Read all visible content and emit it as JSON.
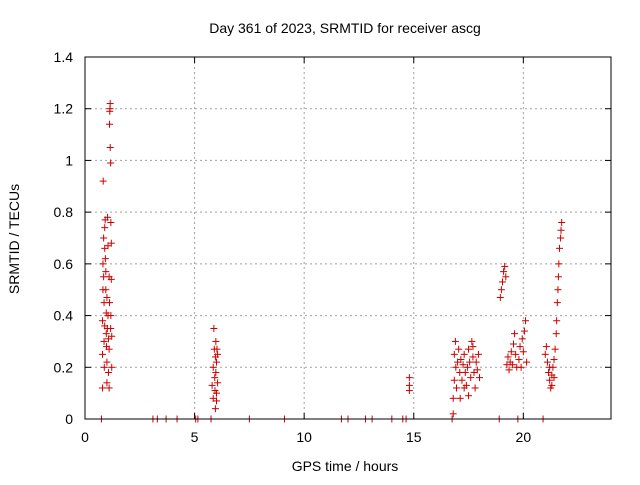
{
  "chart_data": {
    "type": "scatter",
    "title": "Day 361 of 2023, SRMTID for receiver ascg",
    "xlabel": "GPS time / hours",
    "ylabel": "SRMTID / TECUs",
    "xlim": [
      0,
      24
    ],
    "ylim": [
      0,
      1.4
    ],
    "xticks": [
      0,
      5,
      10,
      15,
      20
    ],
    "yticks": [
      0,
      0.2,
      0.4,
      0.6,
      0.8,
      1,
      1.2,
      1.4
    ],
    "xtick_labels": [
      "0",
      "5",
      "10",
      "15",
      "20"
    ],
    "ytick_labels": [
      "0",
      "0.2",
      "0.4",
      "0.6",
      "0.8",
      "1",
      "1.2",
      "1.4"
    ],
    "grid": true,
    "marker": "+",
    "colors": {
      "points": "#cc0000",
      "grid": "#a0a0a0",
      "axes": "#000000"
    },
    "series": [
      {
        "name": "SRMTID",
        "points": [
          [
            0.75,
            0.0
          ],
          [
            0.8,
            0.12
          ],
          [
            0.8,
            0.25
          ],
          [
            0.8,
            0.38
          ],
          [
            0.82,
            0.5
          ],
          [
            0.82,
            0.6
          ],
          [
            0.83,
            0.92
          ],
          [
            0.85,
            0.7
          ],
          [
            0.85,
            0.55
          ],
          [
            0.87,
            0.45
          ],
          [
            0.87,
            0.3
          ],
          [
            0.88,
            0.2
          ],
          [
            0.9,
            0.36
          ],
          [
            0.9,
            0.66
          ],
          [
            0.9,
            0.74
          ],
          [
            0.92,
            0.77
          ],
          [
            0.93,
            0.62
          ],
          [
            0.95,
            0.57
          ],
          [
            0.97,
            0.41
          ],
          [
            0.97,
            0.33
          ],
          [
            0.98,
            0.28
          ],
          [
            1.0,
            0.14
          ],
          [
            1.0,
            0.22
          ],
          [
            1.0,
            0.47
          ],
          [
            1.02,
            0.35
          ],
          [
            1.03,
            0.78
          ],
          [
            1.05,
            0.67
          ],
          [
            1.05,
            0.4
          ],
          [
            1.07,
            0.31
          ],
          [
            1.07,
            0.18
          ],
          [
            1.1,
            0.12
          ],
          [
            1.1,
            0.27
          ],
          [
            1.12,
            0.45
          ],
          [
            1.12,
            1.14
          ],
          [
            1.13,
            1.19
          ],
          [
            1.14,
            1.2
          ],
          [
            1.15,
            1.22
          ],
          [
            1.15,
            1.05
          ],
          [
            1.17,
            0.99
          ],
          [
            1.17,
            0.35
          ],
          [
            1.18,
            0.4
          ],
          [
            1.18,
            0.76
          ],
          [
            1.2,
            0.68
          ],
          [
            1.2,
            0.54
          ],
          [
            1.22,
            0.32
          ],
          [
            1.22,
            0.2
          ],
          [
            1.1,
            0.55
          ],
          [
            0.95,
            0.5
          ],
          [
            3.1,
            0.0
          ],
          [
            3.3,
            0.0
          ],
          [
            3.7,
            0.0
          ],
          [
            4.2,
            0.0
          ],
          [
            5.05,
            0.0
          ],
          [
            5.15,
            0.0
          ],
          [
            5.75,
            0.0
          ],
          [
            5.8,
            0.13
          ],
          [
            5.85,
            0.2
          ],
          [
            5.85,
            0.08
          ],
          [
            5.88,
            0.35
          ],
          [
            5.9,
            0.27
          ],
          [
            5.92,
            0.16
          ],
          [
            5.93,
            0.11
          ],
          [
            5.95,
            0.24
          ],
          [
            5.97,
            0.3
          ],
          [
            5.97,
            0.18
          ],
          [
            6.0,
            0.07
          ],
          [
            6.0,
            0.22
          ],
          [
            6.02,
            0.27
          ],
          [
            6.05,
            0.14
          ],
          [
            6.05,
            0.25
          ],
          [
            5.95,
            0.04
          ],
          [
            6.0,
            0.1
          ],
          [
            7.5,
            0.0
          ],
          [
            9.1,
            0.0
          ],
          [
            11.7,
            0.0
          ],
          [
            12.0,
            0.0
          ],
          [
            12.8,
            0.0
          ],
          [
            13.1,
            0.0
          ],
          [
            14.0,
            0.0
          ],
          [
            14.5,
            0.0
          ],
          [
            14.65,
            0.0
          ],
          [
            14.8,
            0.13
          ],
          [
            14.8,
            0.16
          ],
          [
            14.8,
            0.11
          ],
          [
            16.75,
            0.0
          ],
          [
            16.8,
            0.02
          ],
          [
            16.8,
            0.08
          ],
          [
            16.85,
            0.15
          ],
          [
            16.85,
            0.25
          ],
          [
            16.9,
            0.3
          ],
          [
            16.92,
            0.2
          ],
          [
            16.95,
            0.12
          ],
          [
            17.0,
            0.22
          ],
          [
            17.05,
            0.27
          ],
          [
            17.1,
            0.18
          ],
          [
            17.12,
            0.08
          ],
          [
            17.15,
            0.23
          ],
          [
            17.2,
            0.15
          ],
          [
            17.25,
            0.21
          ],
          [
            17.3,
            0.25
          ],
          [
            17.35,
            0.18
          ],
          [
            17.4,
            0.13
          ],
          [
            17.45,
            0.2
          ],
          [
            17.5,
            0.27
          ],
          [
            17.55,
            0.22
          ],
          [
            17.6,
            0.16
          ],
          [
            17.65,
            0.3
          ],
          [
            17.7,
            0.24
          ],
          [
            17.75,
            0.18
          ],
          [
            17.8,
            0.12
          ],
          [
            17.85,
            0.22
          ],
          [
            17.9,
            0.19
          ],
          [
            17.95,
            0.25
          ],
          [
            18.0,
            0.16
          ],
          [
            17.3,
            0.12
          ],
          [
            17.5,
            0.09
          ],
          [
            17.7,
            0.28
          ],
          [
            18.9,
            0.0
          ],
          [
            18.95,
            0.47
          ],
          [
            19.0,
            0.5
          ],
          [
            19.05,
            0.53
          ],
          [
            19.1,
            0.57
          ],
          [
            19.15,
            0.59
          ],
          [
            19.2,
            0.55
          ],
          [
            19.25,
            0.21
          ],
          [
            19.3,
            0.24
          ],
          [
            19.35,
            0.19
          ],
          [
            19.4,
            0.22
          ],
          [
            19.45,
            0.26
          ],
          [
            19.5,
            0.21
          ],
          [
            19.55,
            0.29
          ],
          [
            19.6,
            0.33
          ],
          [
            19.65,
            0.25
          ],
          [
            19.7,
            0.2
          ],
          [
            19.75,
            0.0
          ],
          [
            19.8,
            0.23
          ],
          [
            19.85,
            0.28
          ],
          [
            19.9,
            0.2
          ],
          [
            19.95,
            0.31
          ],
          [
            20.0,
            0.26
          ],
          [
            20.05,
            0.34
          ],
          [
            20.1,
            0.38
          ],
          [
            20.15,
            0.22
          ],
          [
            20.9,
            0.0
          ],
          [
            21.0,
            0.25
          ],
          [
            21.05,
            0.28
          ],
          [
            21.1,
            0.22
          ],
          [
            21.15,
            0.18
          ],
          [
            21.2,
            0.15
          ],
          [
            21.25,
            0.12
          ],
          [
            21.3,
            0.17
          ],
          [
            21.35,
            0.2
          ],
          [
            21.4,
            0.23
          ],
          [
            21.45,
            0.27
          ],
          [
            21.5,
            0.33
          ],
          [
            21.52,
            0.38
          ],
          [
            21.55,
            0.45
          ],
          [
            21.58,
            0.5
          ],
          [
            21.6,
            0.55
          ],
          [
            21.62,
            0.6
          ],
          [
            21.65,
            0.66
          ],
          [
            21.7,
            0.7
          ],
          [
            21.72,
            0.73
          ],
          [
            21.75,
            0.76
          ],
          [
            21.3,
            0.13
          ],
          [
            21.4,
            0.16
          ],
          [
            21.2,
            0.2
          ]
        ]
      }
    ]
  }
}
